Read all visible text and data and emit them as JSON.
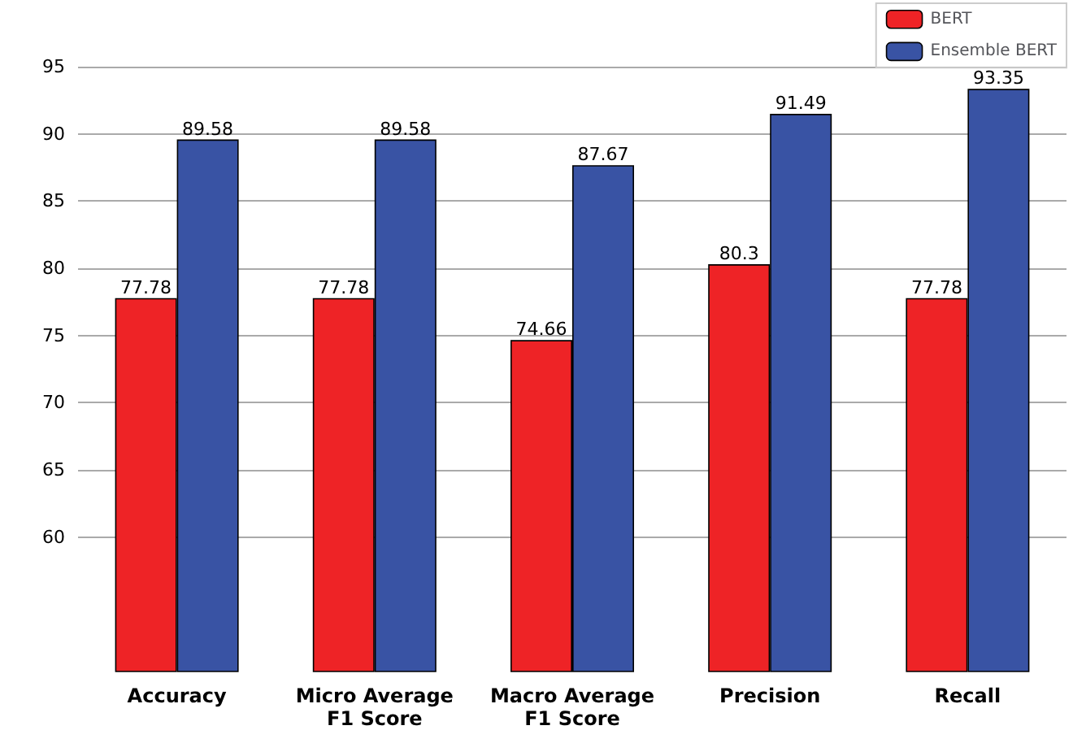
{
  "chart_data": {
    "type": "bar",
    "categories": [
      "Accuracy",
      "Micro Average\nF1 Score",
      "Macro Average\nF1 Score",
      "Precision",
      "Recall"
    ],
    "series": [
      {
        "name": "BERT",
        "color": "#ee2326",
        "values": [
          77.78,
          77.78,
          74.66,
          80.3,
          77.78
        ]
      },
      {
        "name": "Ensemble BERT",
        "color": "#3953a4",
        "values": [
          89.58,
          89.58,
          87.67,
          91.49,
          93.35
        ]
      }
    ],
    "ylim": [
      50,
      95
    ],
    "yticks": [
      60,
      65,
      70,
      75,
      80,
      85,
      90,
      95
    ],
    "grid": "y",
    "legend": "top right",
    "data_labels": true
  }
}
